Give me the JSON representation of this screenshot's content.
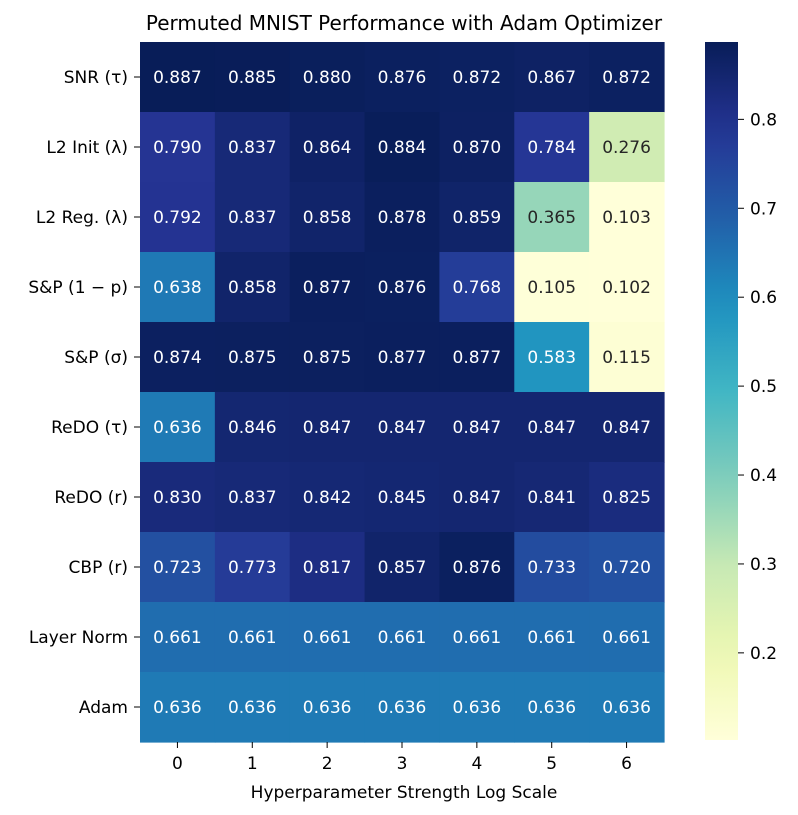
{
  "chart_data": {
    "type": "heatmap",
    "title": "Permuted MNIST Performance with Adam Optimizer",
    "xlabel": "Hyperparameter Strength Log Scale",
    "ylabel": "",
    "x_categories": [
      "0",
      "1",
      "2",
      "3",
      "4",
      "5",
      "6"
    ],
    "rows": [
      {
        "label": "SNR (τ)",
        "values": [
          0.887,
          0.885,
          0.88,
          0.876,
          0.872,
          0.867,
          0.872
        ],
        "labels": [
          "0.887",
          "0.885",
          "0.880",
          "0.876",
          "0.872",
          "0.867",
          "0.872"
        ]
      },
      {
        "label": "L2 Init (λ)",
        "values": [
          0.79,
          0.837,
          0.864,
          0.884,
          0.87,
          0.784,
          0.276
        ],
        "labels": [
          "0.790",
          "0.837",
          "0.864",
          "0.884",
          "0.870",
          "0.784",
          "0.276"
        ]
      },
      {
        "label": "L2 Reg. (λ)",
        "values": [
          0.792,
          0.837,
          0.858,
          0.878,
          0.859,
          0.365,
          0.103
        ],
        "labels": [
          "0.792",
          "0.837",
          "0.858",
          "0.878",
          "0.859",
          "0.365",
          "0.103"
        ]
      },
      {
        "label": "S&P (1 − p)",
        "values": [
          0.638,
          0.858,
          0.877,
          0.876,
          0.768,
          0.105,
          0.102
        ],
        "labels": [
          "0.638",
          "0.858",
          "0.877",
          "0.876",
          "0.768",
          "0.105",
          "0.102"
        ]
      },
      {
        "label": "S&P (σ)",
        "values": [
          0.874,
          0.875,
          0.875,
          0.877,
          0.877,
          0.583,
          0.115
        ],
        "labels": [
          "0.874",
          "0.875",
          "0.875",
          "0.877",
          "0.877",
          "0.583",
          "0.115"
        ]
      },
      {
        "label": "ReDO (τ)",
        "values": [
          0.636,
          0.846,
          0.847,
          0.847,
          0.847,
          0.847,
          0.847
        ],
        "labels": [
          "0.636",
          "0.846",
          "0.847",
          "0.847",
          "0.847",
          "0.847",
          "0.847"
        ]
      },
      {
        "label": "ReDO (r)",
        "values": [
          0.83,
          0.837,
          0.842,
          0.845,
          0.847,
          0.841,
          0.825
        ],
        "labels": [
          "0.830",
          "0.837",
          "0.842",
          "0.845",
          "0.847",
          "0.841",
          "0.825"
        ]
      },
      {
        "label": "CBP (r)",
        "values": [
          0.723,
          0.773,
          0.817,
          0.857,
          0.876,
          0.733,
          0.72
        ],
        "labels": [
          "0.723",
          "0.773",
          "0.817",
          "0.857",
          "0.876",
          "0.733",
          "0.720"
        ]
      },
      {
        "label": "Layer Norm",
        "values": [
          0.661,
          0.661,
          0.661,
          0.661,
          0.661,
          0.661,
          0.661
        ],
        "labels": [
          "0.661",
          "0.661",
          "0.661",
          "0.661",
          "0.661",
          "0.661",
          "0.661"
        ]
      },
      {
        "label": "Adam",
        "values": [
          0.636,
          0.636,
          0.636,
          0.636,
          0.636,
          0.636,
          0.636
        ],
        "labels": [
          "0.636",
          "0.636",
          "0.636",
          "0.636",
          "0.636",
          "0.636",
          "0.636"
        ]
      }
    ],
    "colorbar": {
      "colormap": "YlGnBu",
      "vmin": 0.102,
      "vmax": 0.887,
      "ticks": [
        0.2,
        0.3,
        0.4,
        0.5,
        0.6,
        0.7,
        0.8
      ],
      "tick_labels": [
        "0.2",
        "0.3",
        "0.4",
        "0.5",
        "0.6",
        "0.7",
        "0.8"
      ]
    },
    "grid": false,
    "legend": "colorbar-right"
  }
}
